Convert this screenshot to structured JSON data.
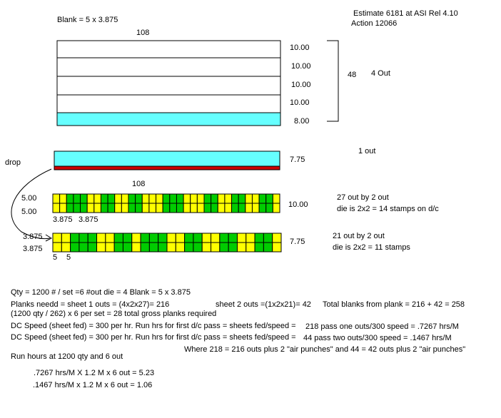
{
  "header": {
    "blank_label": "Blank = 5 x 3.875",
    "estimate": "Estimate 6181 at ASI Rel 4.10",
    "action": "Action 12066"
  },
  "sheet": {
    "width_label": "108",
    "rows": [
      "10.00",
      "10.00",
      "10.00",
      "10.00",
      "8.00"
    ],
    "height_label": "48",
    "outs_label": "4 Out"
  },
  "drop": {
    "label": "drop",
    "width_label": "7.75",
    "outs_label": "1 out"
  },
  "plank1": {
    "width_label": "108",
    "left_labels": [
      "5.00",
      "5.00"
    ],
    "bottom_labels": [
      "3.875",
      "3.875"
    ],
    "height_label": "10.00",
    "note1": "27 out by 2 out",
    "note2": "die is 2x2 = 14 stamps on d/c",
    "top_row": [
      "y",
      "y",
      "g",
      "g",
      "g",
      "y",
      "y",
      "g",
      "g",
      "y",
      "y",
      "g",
      "g",
      "y",
      "y",
      "y",
      "g",
      "g",
      "g",
      "y",
      "y",
      "y",
      "g",
      "g",
      "y",
      "y",
      "g",
      "g",
      "y",
      "y",
      "g",
      "g",
      "y"
    ],
    "bottom_row": [
      "y",
      "y",
      "g",
      "g",
      "g",
      "y",
      "y",
      "g",
      "g",
      "y",
      "y",
      "g",
      "g",
      "y",
      "y",
      "y",
      "g",
      "g",
      "g",
      "y",
      "y",
      "y",
      "g",
      "g",
      "y",
      "y",
      "g",
      "g",
      "y",
      "y",
      "g",
      "g",
      "y"
    ]
  },
  "plank2": {
    "left_labels": [
      "3.875",
      "3.875"
    ],
    "bottom_labels": [
      "5",
      "5"
    ],
    "height_label": "7.75",
    "note1": "21 out by 2 out",
    "note2": "die is 2x2 = 11 stamps",
    "top_row": [
      "y",
      "y",
      "g",
      "g",
      "g",
      "y",
      "y",
      "g",
      "g",
      "y",
      "g",
      "g",
      "g",
      "y",
      "y",
      "g",
      "g",
      "y",
      "y",
      "g",
      "g",
      "y",
      "y",
      "g",
      "g",
      "y"
    ],
    "bottom_row": [
      "y",
      "y",
      "g",
      "g",
      "g",
      "y",
      "y",
      "g",
      "g",
      "y",
      "g",
      "g",
      "g",
      "y",
      "y",
      "g",
      "g",
      "y",
      "y",
      "g",
      "g",
      "y",
      "y",
      "g",
      "g",
      "y"
    ]
  },
  "calcs": {
    "line1": "Qty = 1200 # / set =6  #out die = 4     Blank = 5 x 3.875",
    "line2a": "Planks needd = sheet 1 outs  = (4x2x27)= 216",
    "line2b": "sheet 2 outs =(1x2x21)= 42",
    "line2c": "Total blanks from plank = 216 + 42 = 258",
    "line3": " (1200 qty / 262) x 6 per set = 28 total gross planks required",
    "line4a": "DC Speed (sheet fed) = 300 per hr. Run hrs for first d/c pass = sheets fed/speed =",
    "line4b": "218 pass one outs/300 speed = .7267  hrs/M",
    "line5a": "DC Speed (sheet fed) = 300 per hr. Run hrs for first d/c pass = sheets fed/speed =",
    "line5b": " 44 pass two outs/300 speed = .1467  hrs/M",
    "line6": "Where 218 =  216 outs plus 2 \"air punches\" and 44 = 42 outs plus 2 \"air punches\"",
    "line7": "Run hours at 1200 qty and 6 out",
    "line8": ".7267  hrs/M   X 1.2 M x 6 out = 5.23",
    "line9": ".1467  hrs/M  x  1.2 M x 6 out = 1.06"
  },
  "colors": {
    "cyan": "#66ffff",
    "red": "#cc0000",
    "yellow": "#ffff00",
    "green": "#00cc00"
  }
}
